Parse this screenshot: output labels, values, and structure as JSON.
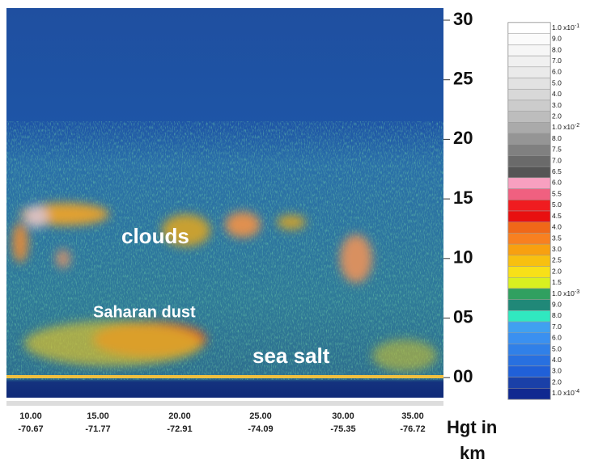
{
  "figure": {
    "annotations": {
      "clouds": "clouds",
      "dust": "Saharan dust",
      "salt": "sea salt"
    },
    "y_ticks": [
      "30",
      "25",
      "20",
      "15",
      "10",
      "05",
      "00"
    ],
    "x_ticks": [
      {
        "top": "10.00",
        "bottom": "-70.67"
      },
      {
        "top": "15.00",
        "bottom": "-71.77"
      },
      {
        "top": "20.00",
        "bottom": "-72.91"
      },
      {
        "top": "25.00",
        "bottom": "-74.09"
      },
      {
        "top": "30.00",
        "bottom": "-75.35"
      },
      {
        "top": "35.00",
        "bottom": "-76.72"
      }
    ],
    "axis_label": {
      "line1": "Hgt in",
      "line2": "km"
    },
    "colorbar": [
      {
        "text": "1.0 x10",
        "exp": "-1"
      },
      {
        "text": "9.0"
      },
      {
        "text": "8.0"
      },
      {
        "text": "7.0"
      },
      {
        "text": "6.0"
      },
      {
        "text": "5.0"
      },
      {
        "text": "4.0"
      },
      {
        "text": "3.0"
      },
      {
        "text": "2.0"
      },
      {
        "text": "1.0 x10",
        "exp": "-2"
      },
      {
        "text": "8.0"
      },
      {
        "text": "7.5"
      },
      {
        "text": "7.0"
      },
      {
        "text": "6.5"
      },
      {
        "text": "6.0"
      },
      {
        "text": "5.5"
      },
      {
        "text": "5.0"
      },
      {
        "text": "4.5"
      },
      {
        "text": "4.0"
      },
      {
        "text": "3.5"
      },
      {
        "text": "3.0"
      },
      {
        "text": "2.5"
      },
      {
        "text": "2.0"
      },
      {
        "text": "1.5"
      },
      {
        "text": "1.0 x10",
        "exp": "-3"
      },
      {
        "text": "9.0"
      },
      {
        "text": "8.0"
      },
      {
        "text": "7.0"
      },
      {
        "text": "6.0"
      },
      {
        "text": "5.0"
      },
      {
        "text": "4.0"
      },
      {
        "text": "3.0"
      },
      {
        "text": "2.0"
      },
      {
        "text": "1.0 x10",
        "exp": "-4"
      }
    ]
  }
}
